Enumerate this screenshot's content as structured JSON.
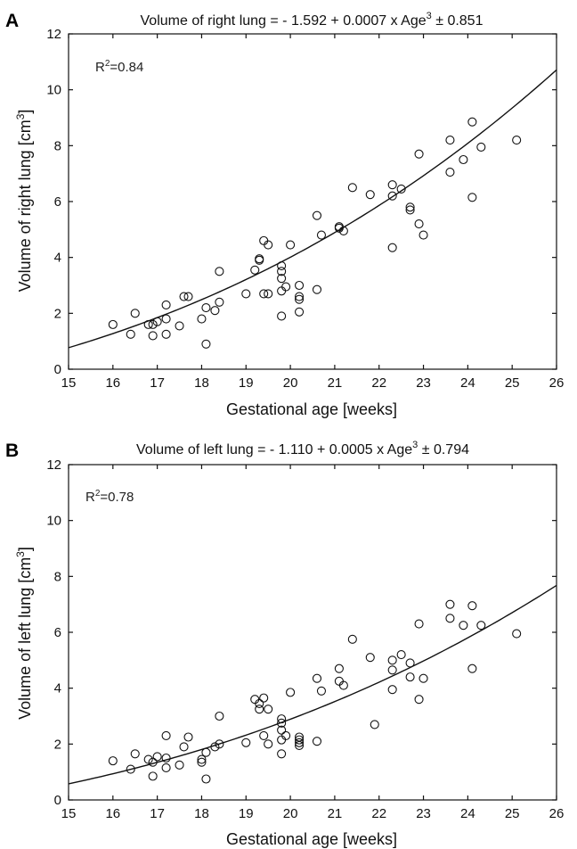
{
  "chart_data": [
    {
      "type": "scatter",
      "panel": "A",
      "title": "Volume of right lung = - 1.592 + 0.0007 x Age",
      "title_sup": "3",
      "title_suffix": " ± 0.851",
      "xlabel": "Gestational age [weeks]",
      "ylabel": "Volume of right lung [cm",
      "ylabel_sup": "3",
      "ylabel_suffix": "]",
      "annotation": "R",
      "annotation_sup": "2",
      "annotation_suffix": "=0.84",
      "xlim": [
        15,
        26
      ],
      "ylim": [
        0,
        12
      ],
      "xticks": [
        15,
        16,
        17,
        18,
        19,
        20,
        21,
        22,
        23,
        24,
        25,
        26
      ],
      "yticks": [
        0,
        2,
        4,
        6,
        8,
        10,
        12
      ],
      "grid": false,
      "fit": {
        "intercept": -1.592,
        "coef": 0.0007,
        "power": 3
      },
      "points": [
        [
          16.0,
          1.6
        ],
        [
          16.4,
          1.25
        ],
        [
          16.5,
          2.0
        ],
        [
          16.8,
          1.6
        ],
        [
          16.9,
          1.2
        ],
        [
          16.9,
          1.6
        ],
        [
          17.0,
          1.7
        ],
        [
          17.2,
          1.8
        ],
        [
          17.2,
          1.25
        ],
        [
          17.2,
          2.3
        ],
        [
          17.5,
          1.55
        ],
        [
          17.6,
          2.6
        ],
        [
          17.7,
          2.6
        ],
        [
          18.0,
          1.8
        ],
        [
          18.1,
          2.2
        ],
        [
          18.1,
          0.9
        ],
        [
          18.3,
          2.1
        ],
        [
          18.4,
          2.4
        ],
        [
          18.4,
          3.5
        ],
        [
          19.0,
          2.7
        ],
        [
          19.2,
          3.55
        ],
        [
          19.3,
          3.95
        ],
        [
          19.3,
          3.9
        ],
        [
          19.4,
          4.6
        ],
        [
          19.4,
          2.7
        ],
        [
          19.5,
          4.45
        ],
        [
          19.5,
          2.7
        ],
        [
          19.8,
          3.7
        ],
        [
          19.8,
          3.5
        ],
        [
          19.8,
          3.25
        ],
        [
          19.8,
          2.8
        ],
        [
          19.8,
          1.9
        ],
        [
          19.9,
          2.95
        ],
        [
          20.0,
          4.45
        ],
        [
          20.2,
          3.0
        ],
        [
          20.2,
          2.6
        ],
        [
          20.2,
          2.5
        ],
        [
          20.2,
          2.05
        ],
        [
          20.6,
          5.5
        ],
        [
          20.6,
          2.85
        ],
        [
          20.7,
          4.8
        ],
        [
          21.1,
          5.1
        ],
        [
          21.1,
          5.05
        ],
        [
          21.2,
          4.95
        ],
        [
          21.4,
          6.5
        ],
        [
          21.8,
          6.25
        ],
        [
          22.3,
          6.6
        ],
        [
          22.3,
          6.2
        ],
        [
          22.3,
          4.35
        ],
        [
          22.5,
          6.45
        ],
        [
          22.7,
          5.8
        ],
        [
          22.7,
          5.7
        ],
        [
          22.9,
          7.7
        ],
        [
          22.9,
          5.2
        ],
        [
          23.0,
          4.8
        ],
        [
          23.6,
          8.2
        ],
        [
          23.6,
          7.05
        ],
        [
          23.9,
          7.5
        ],
        [
          24.1,
          8.85
        ],
        [
          24.1,
          6.15
        ],
        [
          24.3,
          7.95
        ],
        [
          25.1,
          8.2
        ]
      ]
    },
    {
      "type": "scatter",
      "panel": "B",
      "title": "Volume of left lung = - 1.110 + 0.0005 x Age",
      "title_sup": "3",
      "title_suffix": " ± 0.794",
      "xlabel": "Gestational age [weeks]",
      "ylabel": "Volume of left lung [cm",
      "ylabel_sup": "3",
      "ylabel_suffix": "]",
      "annotation": "R",
      "annotation_sup": "2",
      "annotation_suffix": "=0.78",
      "xlim": [
        15,
        26
      ],
      "ylim": [
        0,
        12
      ],
      "xticks": [
        15,
        16,
        17,
        18,
        19,
        20,
        21,
        22,
        23,
        24,
        25,
        26
      ],
      "yticks": [
        0,
        2,
        4,
        6,
        8,
        10,
        12
      ],
      "grid": false,
      "fit": {
        "intercept": -1.11,
        "coef": 0.0005,
        "power": 3
      },
      "points": [
        [
          16.0,
          1.4
        ],
        [
          16.4,
          1.1
        ],
        [
          16.5,
          1.65
        ],
        [
          16.8,
          1.45
        ],
        [
          16.9,
          0.85
        ],
        [
          16.9,
          1.35
        ],
        [
          17.0,
          1.55
        ],
        [
          17.2,
          2.3
        ],
        [
          17.2,
          1.5
        ],
        [
          17.2,
          1.15
        ],
        [
          17.5,
          1.25
        ],
        [
          17.6,
          1.9
        ],
        [
          17.7,
          2.25
        ],
        [
          18.0,
          1.45
        ],
        [
          18.0,
          1.35
        ],
        [
          18.1,
          1.7
        ],
        [
          18.1,
          0.75
        ],
        [
          18.3,
          1.9
        ],
        [
          18.4,
          2.0
        ],
        [
          18.4,
          3.0
        ],
        [
          19.0,
          2.05
        ],
        [
          19.2,
          3.6
        ],
        [
          19.3,
          3.45
        ],
        [
          19.3,
          3.25
        ],
        [
          19.4,
          3.65
        ],
        [
          19.4,
          2.3
        ],
        [
          19.5,
          3.25
        ],
        [
          19.5,
          2.0
        ],
        [
          19.8,
          2.9
        ],
        [
          19.8,
          2.75
        ],
        [
          19.8,
          2.5
        ],
        [
          19.8,
          2.15
        ],
        [
          19.8,
          1.65
        ],
        [
          19.9,
          2.3
        ],
        [
          20.0,
          3.85
        ],
        [
          20.2,
          2.25
        ],
        [
          20.2,
          2.15
        ],
        [
          20.2,
          2.05
        ],
        [
          20.2,
          1.95
        ],
        [
          20.6,
          4.35
        ],
        [
          20.6,
          2.1
        ],
        [
          20.7,
          3.9
        ],
        [
          21.1,
          4.7
        ],
        [
          21.1,
          4.25
        ],
        [
          21.2,
          4.1
        ],
        [
          21.4,
          5.75
        ],
        [
          21.8,
          5.1
        ],
        [
          21.9,
          2.7
        ],
        [
          22.3,
          5.0
        ],
        [
          22.3,
          4.65
        ],
        [
          22.3,
          3.95
        ],
        [
          22.5,
          5.2
        ],
        [
          22.7,
          4.9
        ],
        [
          22.7,
          4.4
        ],
        [
          22.9,
          6.3
        ],
        [
          22.9,
          3.6
        ],
        [
          23.0,
          4.35
        ],
        [
          23.6,
          7.0
        ],
        [
          23.6,
          6.5
        ],
        [
          23.9,
          6.25
        ],
        [
          24.1,
          6.95
        ],
        [
          24.1,
          4.7
        ],
        [
          24.3,
          6.25
        ],
        [
          25.1,
          5.95
        ]
      ]
    }
  ]
}
